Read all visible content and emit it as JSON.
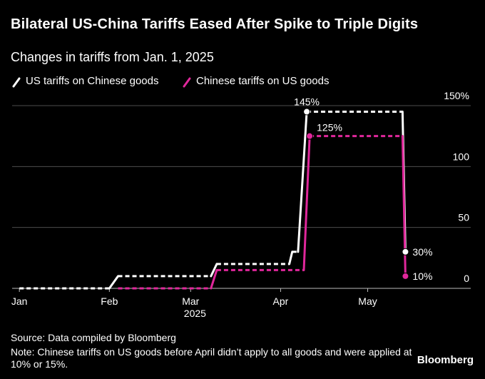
{
  "chart_data": {
    "type": "line",
    "title": "Bilateral US-China Tariffs Eased After Spike to Triple Digits",
    "subtitle": "Changes in tariffs from Jan. 1, 2025",
    "x_sublabel": "2025",
    "source": "Source: Data compiled by Bloomberg",
    "note": "Note: Chinese tariffs on US goods before April didn’t apply to all goods and were applied at 10% or 15%.",
    "brand": "Bloomberg",
    "xlim": [
      -2.5,
      155.5
    ],
    "xticks": [
      {
        "value": 0,
        "label": "Jan"
      },
      {
        "value": 31,
        "label": "Feb"
      },
      {
        "value": 59,
        "label": "Mar"
      },
      {
        "value": 90,
        "label": "Apr"
      },
      {
        "value": 120,
        "label": "May"
      }
    ],
    "ylim": [
      0,
      150
    ],
    "yticks": [
      0,
      50,
      100,
      {
        "value": 150,
        "label": "150%"
      }
    ],
    "grid": true,
    "series": [
      {
        "name": "US tariffs on Chinese goods",
        "color": "#ffffff",
        "x": [
          0,
          31,
          34,
          66,
          68,
          93,
          94,
          96,
          99,
          132,
          133
        ],
        "values": [
          0,
          0,
          10,
          10,
          20,
          20,
          30,
          30,
          145,
          145,
          30
        ],
        "value_labels": [
          null,
          null,
          null,
          null,
          null,
          null,
          null,
          null,
          "145%",
          null,
          "30%"
        ]
      },
      {
        "name": "Chinese tariffs on US goods",
        "color": "#e0279b",
        "x": [
          34,
          66,
          68,
          98,
          100,
          132,
          133
        ],
        "values": [
          0,
          0,
          15,
          15,
          125,
          125,
          10
        ],
        "value_labels": [
          null,
          null,
          null,
          null,
          "125%",
          null,
          "10%"
        ]
      }
    ]
  }
}
